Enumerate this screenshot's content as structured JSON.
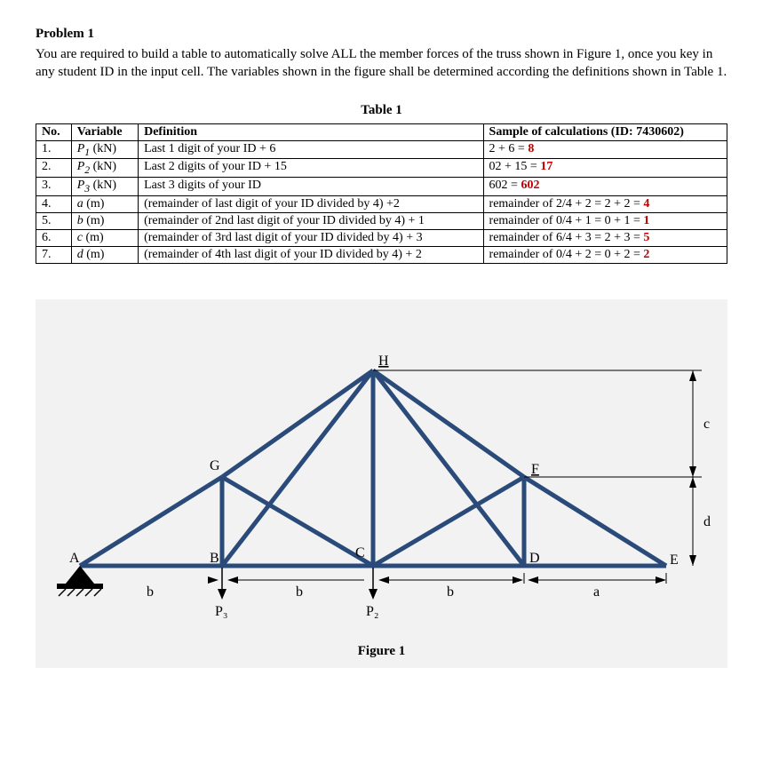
{
  "problem": {
    "heading": "Problem 1",
    "text": "You are required to build a table to automatically solve ALL the member forces of the truss shown in Figure 1, once you key in any student ID in the input cell. The variables shown in the figure shall be determined according the definitions shown in Table 1."
  },
  "table": {
    "caption": "Table 1",
    "headers": {
      "no": "No.",
      "variable": "Variable",
      "definition": "Definition",
      "sample": "Sample of calculations (ID: 7430602)"
    },
    "rows": [
      {
        "no": "1.",
        "var_main": "P",
        "var_sub": "1",
        "var_unit": " (kN)",
        "def": "Last 1 digit of your ID + 6",
        "samp_pre": "2 + 6 = ",
        "samp_val": "8"
      },
      {
        "no": "2.",
        "var_main": "P",
        "var_sub": "2",
        "var_unit": " (kN)",
        "def": "Last 2 digits of your ID + 15",
        "samp_pre": "02 + 15 = ",
        "samp_val": "17"
      },
      {
        "no": "3.",
        "var_main": "P",
        "var_sub": "3",
        "var_unit": " (kN)",
        "def": "Last 3 digits of your ID",
        "samp_pre": "602 = ",
        "samp_val": "602"
      },
      {
        "no": "4.",
        "var_main": "a",
        "var_sub": "",
        "var_unit": " (m)",
        "def": "(remainder of last digit of your ID divided by 4) +2",
        "samp_pre": "remainder of 2/4 + 2 = 2 + 2 = ",
        "samp_val": "4"
      },
      {
        "no": "5.",
        "var_main": "b",
        "var_sub": "",
        "var_unit": " (m)",
        "def": "(remainder of 2nd last digit of your ID divided by 4) + 1",
        "samp_pre": "remainder of 0/4 + 1 = 0 + 1 = ",
        "samp_val": "1"
      },
      {
        "no": "6.",
        "var_main": "c",
        "var_sub": "",
        "var_unit": " (m)",
        "def": "(remainder of 3rd last digit of your ID divided by 4) + 3",
        "samp_pre": "remainder of 6/4 + 3 = 2 + 3 = ",
        "samp_val": "5"
      },
      {
        "no": "7.",
        "var_main": "d",
        "var_sub": "",
        "var_unit": " (m)",
        "def": "(remainder of 4th last digit of your ID divided by 4) + 2",
        "samp_pre": "remainder of 0/4 + 2 = 0 + 2 = ",
        "samp_val": "2"
      }
    ]
  },
  "figure": {
    "caption": "Figure 1",
    "node_labels": {
      "A": "A",
      "B": "B",
      "C": "C",
      "D": "D",
      "E": "E",
      "F": "F",
      "G": "G",
      "H": "H"
    },
    "dim_labels": {
      "b": "b",
      "a": "a",
      "c": "c",
      "d": "d"
    },
    "load_labels": {
      "P2": "P₂",
      "P3": "P₃"
    },
    "colors": {
      "member": "#2a4a7a",
      "member_stroke_width": 5,
      "thin": "#000000",
      "background": "#f2f2f2",
      "support_fill": "#000000",
      "highlight": "#c00000"
    },
    "geometry_note": "Truss with base nodes A-B-C-D-E along bottom chord; apex H above C; intermediate top nodes G (above B) and F (above D). Vertical dims c (E to F level) and d (F level down to base). Horizontal dims: b between A-B, B-C, C-D; a between D-E."
  }
}
